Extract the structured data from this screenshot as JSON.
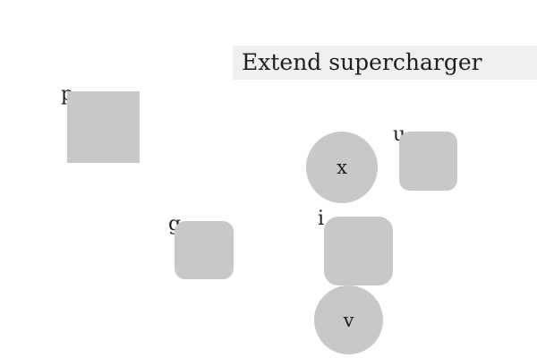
{
  "task": {
    "instruction": "Extend supercharger"
  },
  "shapes": {
    "p": {
      "label": "p",
      "shape": "square"
    },
    "g": {
      "label": "g",
      "shape": "rounded-square"
    },
    "x": {
      "label": "x",
      "shape": "circle"
    },
    "u": {
      "label": "u",
      "shape": "rounded-square"
    },
    "i": {
      "label": "i",
      "shape": "rounded-square"
    },
    "v": {
      "label": "v",
      "shape": "circle"
    }
  },
  "colors": {
    "shape_fill": "#c8c8c8",
    "instruction_background": "#efefef",
    "text": "#1f1f1f",
    "page_background": "#ffffff"
  }
}
